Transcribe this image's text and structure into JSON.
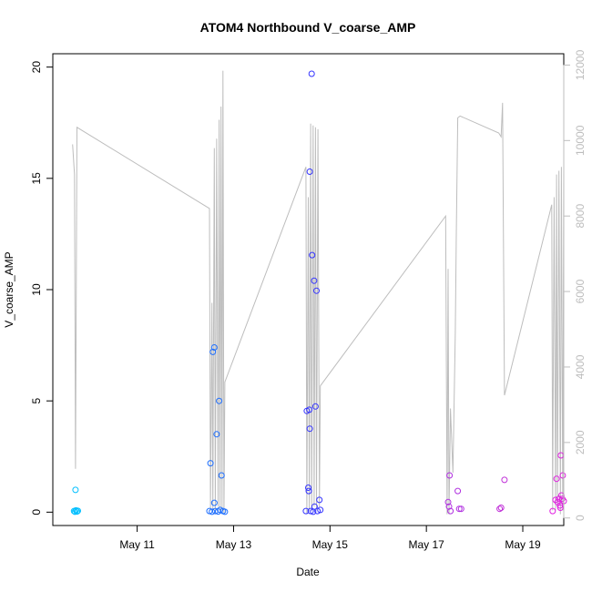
{
  "chart_data": {
    "type": "scatter",
    "title": "ATOM4 Northbound V_coarse_AMP",
    "xlabel": "Date",
    "ylabel": "V_coarse_AMP",
    "x_unit": "days since May 10 00:00",
    "xlim": [
      9.25,
      19.85
    ],
    "ylim": [
      -0.6,
      20.6
    ],
    "y2lim": [
      -200,
      12300
    ],
    "x_ticks": [
      {
        "value": 11,
        "label": "May 11"
      },
      {
        "value": 13,
        "label": "May 13"
      },
      {
        "value": 15,
        "label": "May 15"
      },
      {
        "value": 17,
        "label": "May 17"
      },
      {
        "value": 19,
        "label": "May 19"
      }
    ],
    "y_ticks": [
      {
        "value": 0,
        "label": "0"
      },
      {
        "value": 5,
        "label": "5"
      },
      {
        "value": 10,
        "label": "10"
      },
      {
        "value": 15,
        "label": "15"
      },
      {
        "value": 20,
        "label": "20"
      }
    ],
    "y2_ticks": [
      {
        "value": 0,
        "label": "0"
      },
      {
        "value": 2000,
        "label": "2000"
      },
      {
        "value": 4000,
        "label": "4000"
      },
      {
        "value": 6000,
        "label": "6000"
      },
      {
        "value": 8000,
        "label": "8000"
      },
      {
        "value": 10000,
        "label": "10000"
      },
      {
        "value": 12000,
        "label": "12000"
      }
    ],
    "points": [
      {
        "x": 9.69,
        "y": 0.05,
        "color": "#00bfff"
      },
      {
        "x": 9.71,
        "y": 0.02,
        "color": "#00bfff"
      },
      {
        "x": 9.72,
        "y": 1.0,
        "color": "#00bfff"
      },
      {
        "x": 9.73,
        "y": 0.08,
        "color": "#00bfff"
      },
      {
        "x": 9.75,
        "y": 0.03,
        "color": "#00bfff"
      },
      {
        "x": 9.77,
        "y": 0.06,
        "color": "#00bfff"
      },
      {
        "x": 12.5,
        "y": 0.05,
        "color": "#1e6fff"
      },
      {
        "x": 12.52,
        "y": 2.2,
        "color": "#1e6fff"
      },
      {
        "x": 12.55,
        "y": 0.02,
        "color": "#1e6fff"
      },
      {
        "x": 12.57,
        "y": 7.2,
        "color": "#1e6fff"
      },
      {
        "x": 12.6,
        "y": 7.4,
        "color": "#1e6fff"
      },
      {
        "x": 12.6,
        "y": 0.42,
        "color": "#1e6fff"
      },
      {
        "x": 12.62,
        "y": 0.05,
        "color": "#1e6fff"
      },
      {
        "x": 12.65,
        "y": 3.5,
        "color": "#1e6fff"
      },
      {
        "x": 12.68,
        "y": 0.03,
        "color": "#1e6fff"
      },
      {
        "x": 12.7,
        "y": 5.0,
        "color": "#1e6fff"
      },
      {
        "x": 12.72,
        "y": 0.1,
        "color": "#1e6fff"
      },
      {
        "x": 12.75,
        "y": 1.65,
        "color": "#1e6fff"
      },
      {
        "x": 12.78,
        "y": 0.05,
        "color": "#1e6fff"
      },
      {
        "x": 12.82,
        "y": 0.02,
        "color": "#1e6fff"
      },
      {
        "x": 14.5,
        "y": 0.05,
        "color": "#3535ff"
      },
      {
        "x": 14.52,
        "y": 4.55,
        "color": "#3535ff"
      },
      {
        "x": 14.55,
        "y": 1.1,
        "color": "#3535ff"
      },
      {
        "x": 14.56,
        "y": 0.95,
        "color": "#3535ff"
      },
      {
        "x": 14.57,
        "y": 4.6,
        "color": "#3535ff"
      },
      {
        "x": 14.58,
        "y": 3.75,
        "color": "#3535ff"
      },
      {
        "x": 14.58,
        "y": 15.3,
        "color": "#3535ff"
      },
      {
        "x": 14.6,
        "y": 0.05,
        "color": "#3535ff"
      },
      {
        "x": 14.62,
        "y": 19.7,
        "color": "#3535ff"
      },
      {
        "x": 14.63,
        "y": 11.55,
        "color": "#3535ff"
      },
      {
        "x": 14.65,
        "y": 0.02,
        "color": "#3535ff"
      },
      {
        "x": 14.67,
        "y": 10.4,
        "color": "#3535ff"
      },
      {
        "x": 14.68,
        "y": 0.25,
        "color": "#3535ff"
      },
      {
        "x": 14.7,
        "y": 4.75,
        "color": "#3535ff"
      },
      {
        "x": 14.72,
        "y": 9.95,
        "color": "#3535ff"
      },
      {
        "x": 14.74,
        "y": 0.05,
        "color": "#3535ff"
      },
      {
        "x": 14.78,
        "y": 0.55,
        "color": "#3535ff"
      },
      {
        "x": 14.8,
        "y": 0.1,
        "color": "#3535ff"
      },
      {
        "x": 17.45,
        "y": 0.45,
        "color": "#b030e0"
      },
      {
        "x": 17.47,
        "y": 0.25,
        "color": "#b030e0"
      },
      {
        "x": 17.48,
        "y": 1.65,
        "color": "#b030e0"
      },
      {
        "x": 17.5,
        "y": 0.05,
        "color": "#b030e0"
      },
      {
        "x": 17.65,
        "y": 0.95,
        "color": "#b030e0"
      },
      {
        "x": 17.68,
        "y": 0.15,
        "color": "#b030e0"
      },
      {
        "x": 17.72,
        "y": 0.15,
        "color": "#b030e0"
      },
      {
        "x": 18.52,
        "y": 0.15,
        "color": "#c030d8"
      },
      {
        "x": 18.55,
        "y": 0.2,
        "color": "#c030d8"
      },
      {
        "x": 18.62,
        "y": 1.45,
        "color": "#c030d8"
      },
      {
        "x": 19.62,
        "y": 0.05,
        "color": "#e020e0"
      },
      {
        "x": 19.68,
        "y": 0.55,
        "color": "#e020e0"
      },
      {
        "x": 19.7,
        "y": 1.5,
        "color": "#e020e0"
      },
      {
        "x": 19.72,
        "y": 0.45,
        "color": "#e020e0"
      },
      {
        "x": 19.75,
        "y": 0.6,
        "color": "#e020e0"
      },
      {
        "x": 19.77,
        "y": 0.3,
        "color": "#e020e0"
      },
      {
        "x": 19.78,
        "y": 0.2,
        "color": "#e020e0"
      },
      {
        "x": 19.79,
        "y": 2.55,
        "color": "#e020e0"
      },
      {
        "x": 19.8,
        "y": 0.75,
        "color": "#e020e0"
      },
      {
        "x": 19.82,
        "y": 0.6,
        "color": "#e020e0"
      },
      {
        "x": 19.83,
        "y": 1.65,
        "color": "#e020e0"
      },
      {
        "x": 19.85,
        "y": 0.5,
        "color": "#e020e0"
      }
    ],
    "secondary_line": {
      "color": "#bdbdbd",
      "x": [
        9.66,
        9.7,
        9.72,
        9.75,
        12.5,
        12.52,
        12.55,
        12.57,
        12.6,
        12.62,
        12.65,
        12.68,
        12.7,
        12.72,
        12.74,
        12.76,
        12.78,
        12.8,
        12.82,
        14.5,
        14.52,
        14.55,
        14.57,
        14.6,
        14.62,
        14.65,
        14.67,
        14.7,
        14.72,
        14.75,
        14.78,
        14.8,
        17.4,
        17.43,
        17.45,
        17.47,
        17.5,
        17.55,
        17.6,
        17.62,
        17.65,
        17.7,
        18.5,
        18.55,
        18.58,
        18.62,
        19.6,
        19.62,
        19.65,
        19.68,
        19.7,
        19.72,
        19.75,
        19.78,
        19.8,
        19.83,
        19.85
      ],
      "y": [
        9900,
        9100,
        1300,
        10350,
        8200,
        200,
        5700,
        200,
        9800,
        100,
        10050,
        300,
        10550,
        200,
        10900,
        200,
        11850,
        100,
        3600,
        9300,
        100,
        8500,
        200,
        10450,
        200,
        10400,
        300,
        10350,
        200,
        10300,
        300,
        3500,
        8000,
        100,
        6600,
        100,
        2900,
        1200,
        4900,
        7500,
        10600,
        10650,
        10200,
        10100,
        11000,
        3250,
        8300,
        200,
        8500,
        200,
        9100,
        300,
        9200,
        100,
        9300,
        200,
        9300
      ]
    }
  }
}
